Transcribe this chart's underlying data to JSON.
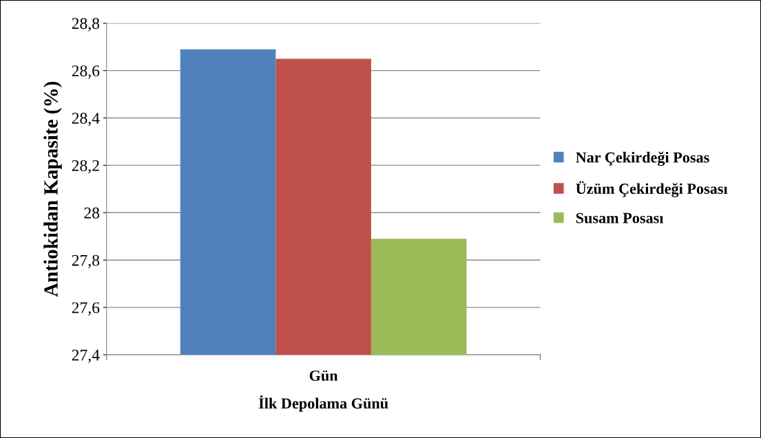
{
  "chart_data": {
    "type": "bar",
    "xlabel": "İlk Depolama Günü",
    "ylabel": "Antiokidan Kapasite (%)",
    "categories": [
      "Gün"
    ],
    "series": [
      {
        "name": "Nar Çekirdeği Posas",
        "color": "#4f81bd",
        "values": [
          28.69
        ]
      },
      {
        "name": "Üzüm Çekirdeği Posası",
        "color": "#c0504d",
        "values": [
          28.65
        ]
      },
      {
        "name": "Susam Posası",
        "color": "#9bbb59",
        "values": [
          27.89
        ]
      }
    ],
    "ylim": [
      27.4,
      28.8
    ],
    "yticks": [
      {
        "value": 27.4,
        "label": "27,4"
      },
      {
        "value": 27.6,
        "label": "27,6"
      },
      {
        "value": 27.8,
        "label": "27,8"
      },
      28,
      {
        "value": 28.2,
        "label": "28,2"
      },
      {
        "value": 28.4,
        "label": "28,4"
      },
      {
        "value": 28.6,
        "label": "28,6"
      },
      {
        "value": 28.8,
        "label": "28,8"
      }
    ],
    "grid": "y",
    "legend": "right"
  }
}
